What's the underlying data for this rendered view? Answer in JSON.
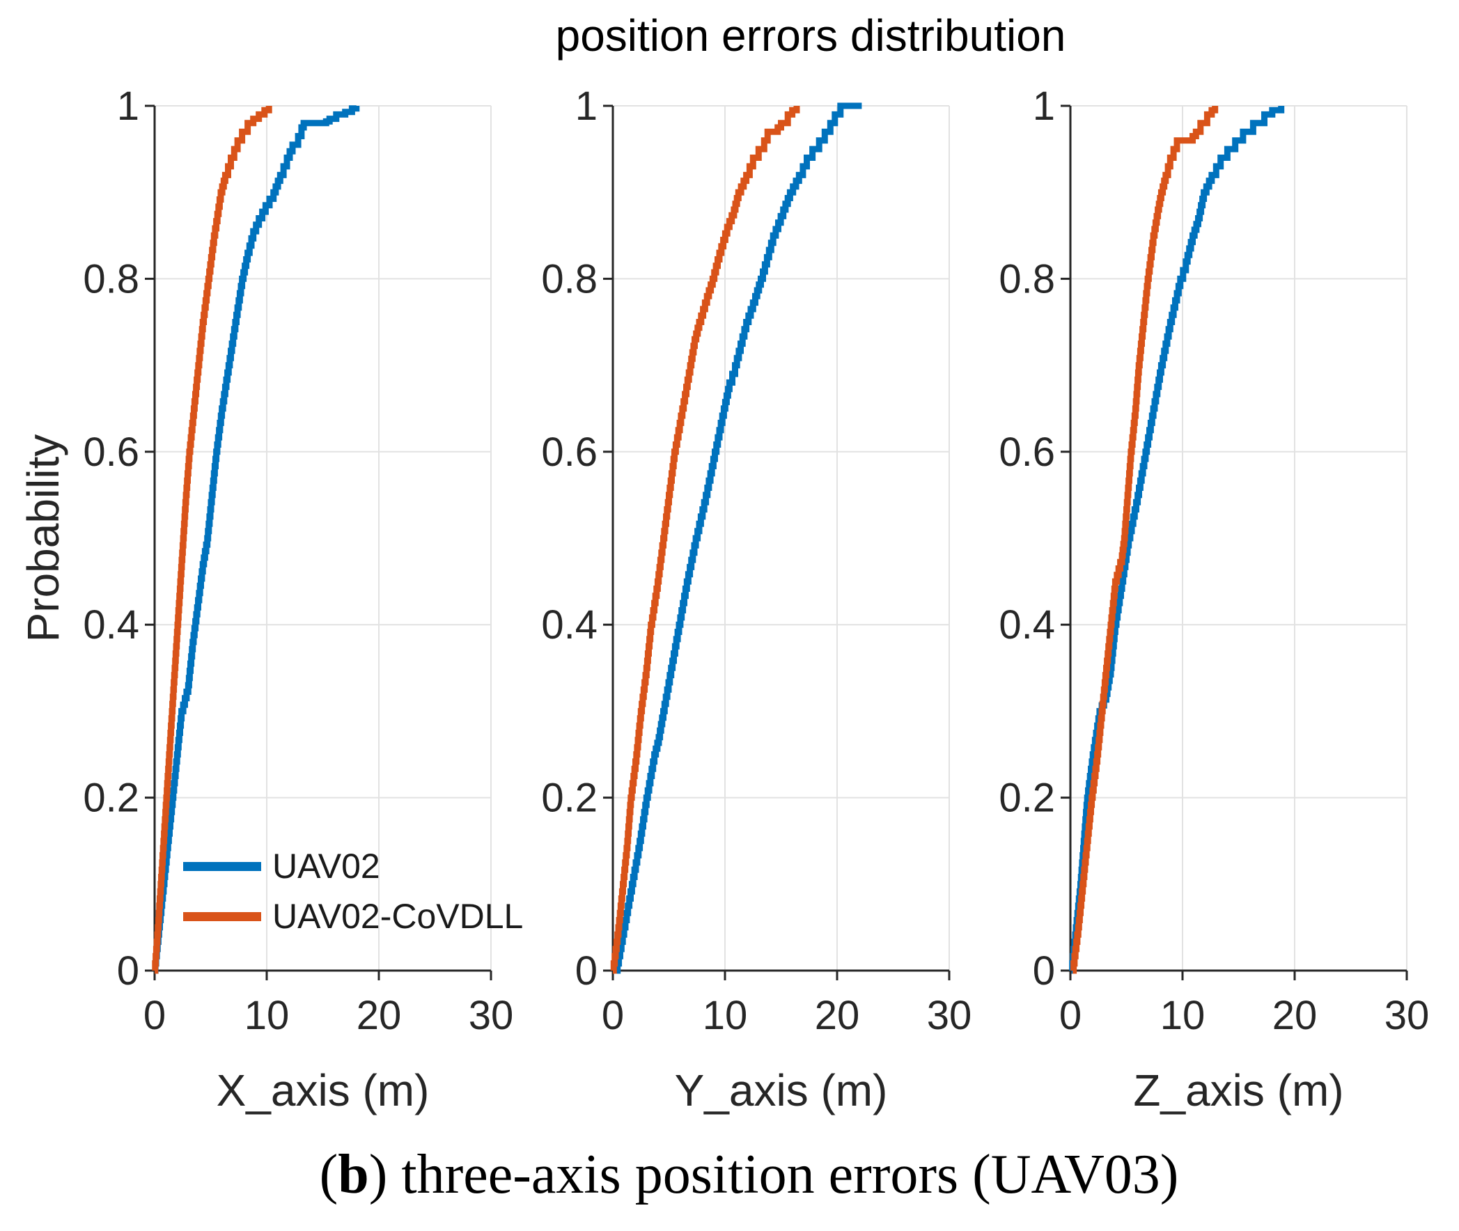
{
  "title": "position errors distribution",
  "ylabel": "Probability",
  "caption": {
    "open_paren": "(",
    "bold": "b",
    "rest": ") three-axis position errors (UAV03)"
  },
  "legend": {
    "location": "lower-left-of-first-subplot",
    "items": [
      {
        "label": "UAV02",
        "color": "#0072BD"
      },
      {
        "label": "UAV02-CoVDLL",
        "color": "#D95319"
      }
    ]
  },
  "colors": {
    "uav02": "#0072BD",
    "uav02_covdll": "#D95319",
    "grid": "#E2E2E2",
    "axis": "#262626"
  },
  "chart_data": [
    {
      "type": "line",
      "subtype": "empirical-cdf",
      "grid": true,
      "xlabel": "X_axis (m)",
      "ylabel": "Probability",
      "xlim": [
        0,
        30
      ],
      "ylim": [
        0,
        1
      ],
      "xticks": [
        0,
        10,
        20,
        30
      ],
      "yticks": [
        0,
        0.2,
        0.4,
        0.6,
        0.8,
        1
      ],
      "series": [
        {
          "name": "UAV02",
          "color": "#0072BD",
          "points": [
            [
              0,
              0
            ],
            [
              0.4,
              0.05
            ],
            [
              0.8,
              0.1
            ],
            [
              1.2,
              0.15
            ],
            [
              1.6,
              0.2
            ],
            [
              2.0,
              0.25
            ],
            [
              2.4,
              0.3
            ],
            [
              3.0,
              0.33
            ],
            [
              3.4,
              0.38
            ],
            [
              3.8,
              0.42
            ],
            [
              4.3,
              0.47
            ],
            [
              4.7,
              0.5
            ],
            [
              5.1,
              0.55
            ],
            [
              5.5,
              0.6
            ],
            [
              6.0,
              0.65
            ],
            [
              6.6,
              0.7
            ],
            [
              7.2,
              0.75
            ],
            [
              7.8,
              0.8
            ],
            [
              8.3,
              0.83
            ],
            [
              8.8,
              0.855
            ],
            [
              9.3,
              0.87
            ],
            [
              9.9,
              0.885
            ],
            [
              10.6,
              0.9
            ],
            [
              11.2,
              0.92
            ],
            [
              11.8,
              0.94
            ],
            [
              12.3,
              0.955
            ],
            [
              12.8,
              0.965
            ],
            [
              13.1,
              0.975
            ],
            [
              13.3,
              0.98
            ],
            [
              15.3,
              0.982
            ],
            [
              15.6,
              0.985
            ],
            [
              16.2,
              0.99
            ],
            [
              17.0,
              0.993
            ],
            [
              17.6,
              0.997
            ],
            [
              18.0,
              1.0
            ]
          ]
        },
        {
          "name": "UAV02-CoVDLL",
          "color": "#D95319",
          "points": [
            [
              0,
              0
            ],
            [
              0.3,
              0.05
            ],
            [
              0.55,
              0.1
            ],
            [
              0.8,
              0.15
            ],
            [
              1.05,
              0.2
            ],
            [
              1.3,
              0.25
            ],
            [
              1.55,
              0.3
            ],
            [
              1.8,
              0.35
            ],
            [
              2.05,
              0.4
            ],
            [
              2.3,
              0.45
            ],
            [
              2.55,
              0.5
            ],
            [
              2.8,
              0.55
            ],
            [
              3.1,
              0.6
            ],
            [
              3.5,
              0.65
            ],
            [
              3.9,
              0.7
            ],
            [
              4.3,
              0.75
            ],
            [
              4.8,
              0.8
            ],
            [
              5.3,
              0.85
            ],
            [
              5.9,
              0.9
            ],
            [
              6.3,
              0.92
            ],
            [
              6.8,
              0.94
            ],
            [
              7.1,
              0.95
            ],
            [
              7.4,
              0.96
            ],
            [
              7.8,
              0.97
            ],
            [
              8.3,
              0.98
            ],
            [
              8.8,
              0.985
            ],
            [
              9.3,
              0.99
            ],
            [
              9.8,
              0.995
            ],
            [
              10.2,
              1.0
            ]
          ]
        }
      ]
    },
    {
      "type": "line",
      "subtype": "empirical-cdf",
      "grid": true,
      "xlabel": "Y_axis (m)",
      "ylabel": "Probability",
      "xlim": [
        0,
        30
      ],
      "ylim": [
        0,
        1
      ],
      "xticks": [
        0,
        10,
        20,
        30
      ],
      "yticks": [
        0,
        0.2,
        0.4,
        0.6,
        0.8,
        1
      ],
      "series": [
        {
          "name": "UAV02",
          "color": "#0072BD",
          "points": [
            [
              0.3,
              0
            ],
            [
              1.0,
              0.05
            ],
            [
              1.7,
              0.1
            ],
            [
              2.4,
              0.15
            ],
            [
              3.0,
              0.2
            ],
            [
              3.7,
              0.25
            ],
            [
              4.1,
              0.27
            ],
            [
              4.5,
              0.3
            ],
            [
              5.2,
              0.35
            ],
            [
              5.9,
              0.4
            ],
            [
              6.6,
              0.45
            ],
            [
              7.4,
              0.5
            ],
            [
              8.3,
              0.55
            ],
            [
              9.1,
              0.6
            ],
            [
              9.9,
              0.65
            ],
            [
              10.4,
              0.68
            ],
            [
              10.9,
              0.7
            ],
            [
              11.9,
              0.75
            ],
            [
              12.7,
              0.78
            ],
            [
              13.2,
              0.8
            ],
            [
              14.3,
              0.85
            ],
            [
              15.2,
              0.88
            ],
            [
              15.8,
              0.9
            ],
            [
              16.6,
              0.92
            ],
            [
              17.3,
              0.94
            ],
            [
              17.8,
              0.95
            ],
            [
              18.4,
              0.96
            ],
            [
              18.9,
              0.97
            ],
            [
              19.4,
              0.98
            ],
            [
              19.8,
              0.99
            ],
            [
              20.3,
              1.0
            ],
            [
              22.2,
              1.0
            ]
          ]
        },
        {
          "name": "UAV02-CoVDLL",
          "color": "#D95319",
          "points": [
            [
              0,
              0
            ],
            [
              0.5,
              0.05
            ],
            [
              0.9,
              0.1
            ],
            [
              1.3,
              0.15
            ],
            [
              1.6,
              0.2
            ],
            [
              2.1,
              0.25
            ],
            [
              2.5,
              0.3
            ],
            [
              3.0,
              0.35
            ],
            [
              3.4,
              0.4
            ],
            [
              4.0,
              0.45
            ],
            [
              4.5,
              0.5
            ],
            [
              5.0,
              0.55
            ],
            [
              5.5,
              0.6
            ],
            [
              6.2,
              0.65
            ],
            [
              6.9,
              0.7
            ],
            [
              7.3,
              0.73
            ],
            [
              7.7,
              0.75
            ],
            [
              8.4,
              0.78
            ],
            [
              8.9,
              0.8
            ],
            [
              9.5,
              0.83
            ],
            [
              10.2,
              0.86
            ],
            [
              10.8,
              0.88
            ],
            [
              11.2,
              0.9
            ],
            [
              11.9,
              0.92
            ],
            [
              12.5,
              0.94
            ],
            [
              13.0,
              0.95
            ],
            [
              13.5,
              0.96
            ],
            [
              13.8,
              0.97
            ],
            [
              14.7,
              0.975
            ],
            [
              15.0,
              0.98
            ],
            [
              15.6,
              0.99
            ],
            [
              16.0,
              0.995
            ],
            [
              16.4,
              1.0
            ]
          ]
        }
      ]
    },
    {
      "type": "line",
      "subtype": "empirical-cdf",
      "grid": true,
      "xlabel": "Z_axis (m)",
      "ylabel": "Probability",
      "xlim": [
        0,
        30
      ],
      "ylim": [
        0,
        1
      ],
      "xticks": [
        0,
        10,
        20,
        30
      ],
      "yticks": [
        0,
        0.2,
        0.4,
        0.6,
        0.8,
        1
      ],
      "series": [
        {
          "name": "UAV02",
          "color": "#0072BD",
          "points": [
            [
              0.1,
              0
            ],
            [
              0.5,
              0.05
            ],
            [
              0.9,
              0.1
            ],
            [
              1.2,
              0.15
            ],
            [
              1.5,
              0.2
            ],
            [
              2.0,
              0.25
            ],
            [
              2.6,
              0.3
            ],
            [
              3.2,
              0.32
            ],
            [
              3.6,
              0.35
            ],
            [
              4.0,
              0.4
            ],
            [
              4.6,
              0.45
            ],
            [
              5.2,
              0.5
            ],
            [
              6.0,
              0.55
            ],
            [
              6.7,
              0.6
            ],
            [
              7.4,
              0.65
            ],
            [
              8.1,
              0.7
            ],
            [
              8.9,
              0.75
            ],
            [
              9.8,
              0.8
            ],
            [
              10.3,
              0.82
            ],
            [
              10.9,
              0.85
            ],
            [
              11.4,
              0.87
            ],
            [
              11.9,
              0.9
            ],
            [
              12.6,
              0.92
            ],
            [
              13.4,
              0.94
            ],
            [
              14.0,
              0.95
            ],
            [
              14.7,
              0.96
            ],
            [
              15.4,
              0.97
            ],
            [
              16.3,
              0.98
            ],
            [
              17.3,
              0.99
            ],
            [
              18.0,
              0.995
            ],
            [
              18.8,
              1.0
            ]
          ]
        },
        {
          "name": "UAV02-CoVDLL",
          "color": "#D95319",
          "points": [
            [
              0.2,
              0
            ],
            [
              0.7,
              0.05
            ],
            [
              1.1,
              0.1
            ],
            [
              1.5,
              0.15
            ],
            [
              1.9,
              0.2
            ],
            [
              2.4,
              0.25
            ],
            [
              2.8,
              0.3
            ],
            [
              3.2,
              0.35
            ],
            [
              3.6,
              0.4
            ],
            [
              4.0,
              0.45
            ],
            [
              4.6,
              0.48
            ],
            [
              4.8,
              0.5
            ],
            [
              5.1,
              0.55
            ],
            [
              5.4,
              0.6
            ],
            [
              5.8,
              0.65
            ],
            [
              6.1,
              0.7
            ],
            [
              6.5,
              0.75
            ],
            [
              6.9,
              0.8
            ],
            [
              7.4,
              0.85
            ],
            [
              7.8,
              0.88
            ],
            [
              8.1,
              0.9
            ],
            [
              8.5,
              0.92
            ],
            [
              8.9,
              0.94
            ],
            [
              9.2,
              0.95
            ],
            [
              9.5,
              0.96
            ],
            [
              10.9,
              0.965
            ],
            [
              11.2,
              0.97
            ],
            [
              11.6,
              0.98
            ],
            [
              12.2,
              0.99
            ],
            [
              12.6,
              0.995
            ],
            [
              12.9,
              1.0
            ]
          ]
        }
      ]
    }
  ]
}
